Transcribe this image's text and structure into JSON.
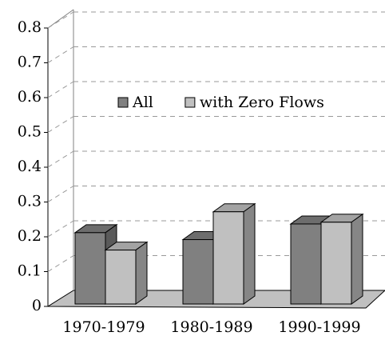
{
  "chart_data": {
    "type": "bar",
    "categories": [
      "1970-1979",
      "1980-1989",
      "1990-1999"
    ],
    "series": [
      {
        "name": "All",
        "color": "#808080",
        "values": [
          0.205,
          0.185,
          0.23
        ]
      },
      {
        "name": "with Zero Flows",
        "color": "#c0c0c0",
        "values": [
          0.155,
          0.265,
          0.235
        ]
      }
    ],
    "ylim": [
      0,
      0.8
    ],
    "yticks": [
      0,
      0.1,
      0.2,
      0.3,
      0.4,
      0.5,
      0.6,
      0.7,
      0.8
    ],
    "grid": true
  }
}
